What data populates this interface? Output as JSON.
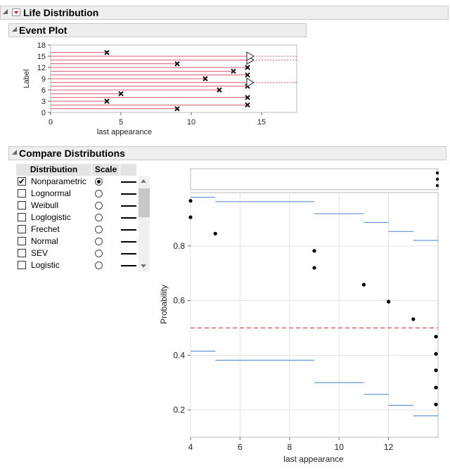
{
  "window": {
    "title": "Life Distribution"
  },
  "event_plot": {
    "title": "Event Plot",
    "chart_data": {
      "type": "scatter",
      "title": "Event Plot",
      "xlabel": "last appearance",
      "ylabel": "Label",
      "xlim": [
        0,
        17.5
      ],
      "ylim": [
        0,
        18
      ],
      "x_ticks": [
        "0",
        "5",
        "10",
        "15"
      ],
      "y_ticks": [
        "0",
        "3",
        "6",
        "9",
        "12",
        "15",
        "18"
      ],
      "events": [
        {
          "label": 1,
          "time": 9,
          "type": "failure"
        },
        {
          "label": 2,
          "time": 14,
          "type": "failure"
        },
        {
          "label": 3,
          "time": 4,
          "type": "failure"
        },
        {
          "label": 4,
          "time": 14,
          "type": "failure"
        },
        {
          "label": 5,
          "time": 5,
          "type": "failure"
        },
        {
          "label": 6,
          "time": 12,
          "type": "failure"
        },
        {
          "label": 7,
          "time": 14,
          "type": "failure"
        },
        {
          "label": 8,
          "time": 14,
          "type": "censored"
        },
        {
          "label": 9,
          "time": 11,
          "type": "failure"
        },
        {
          "label": 10,
          "time": 14,
          "type": "failure"
        },
        {
          "label": 11,
          "time": 13,
          "type": "failure"
        },
        {
          "label": 12,
          "time": 14,
          "type": "failure"
        },
        {
          "label": 13,
          "time": 9,
          "type": "failure"
        },
        {
          "label": 14,
          "time": 14,
          "type": "censored"
        },
        {
          "label": 15,
          "time": 14,
          "type": "censored"
        },
        {
          "label": 16,
          "time": 4,
          "type": "failure"
        }
      ]
    }
  },
  "compare": {
    "title": "Compare Distributions",
    "columns": [
      "Distribution",
      "Scale"
    ],
    "distributions": [
      {
        "name": "Nonparametric",
        "checked": true,
        "selected": true
      },
      {
        "name": "Lognormal",
        "checked": false,
        "selected": false
      },
      {
        "name": "Weibull",
        "checked": false,
        "selected": false
      },
      {
        "name": "Loglogistic",
        "checked": false,
        "selected": false
      },
      {
        "name": "Frechet",
        "checked": false,
        "selected": false
      },
      {
        "name": "Normal",
        "checked": false,
        "selected": false
      },
      {
        "name": "SEV",
        "checked": false,
        "selected": false
      },
      {
        "name": "Logistic",
        "checked": false,
        "selected": false
      }
    ],
    "chart_data": {
      "type": "scatter",
      "xlabel": "last appearance",
      "ylabel": "Probability",
      "xlim": [
        4,
        14
      ],
      "ylim": [
        0.1,
        0.995
      ],
      "x_ticks": [
        "4",
        "6",
        "8",
        "10",
        "12"
      ],
      "y_ticks": [
        "0.2",
        "0.4",
        "0.6",
        "0.8"
      ],
      "reference_line": 0.5,
      "points": [
        {
          "x": 4,
          "y": 0.965
        },
        {
          "x": 4,
          "y": 0.905
        },
        {
          "x": 5,
          "y": 0.845
        },
        {
          "x": 9,
          "y": 0.782
        },
        {
          "x": 9,
          "y": 0.72
        },
        {
          "x": 11,
          "y": 0.658
        },
        {
          "x": 12,
          "y": 0.596
        },
        {
          "x": 13,
          "y": 0.532
        },
        {
          "x": 14,
          "y": 0.468
        },
        {
          "x": 14,
          "y": 0.405
        },
        {
          "x": 14,
          "y": 0.345
        },
        {
          "x": 14,
          "y": 0.282
        },
        {
          "x": 14,
          "y": 0.22
        }
      ],
      "upper_band": [
        {
          "x0": 4,
          "x1": 5,
          "y": 0.978
        },
        {
          "x0": 5,
          "x1": 9,
          "y": 0.962
        },
        {
          "x0": 9,
          "x1": 11,
          "y": 0.918
        },
        {
          "x0": 11,
          "x1": 12,
          "y": 0.886
        },
        {
          "x0": 12,
          "x1": 13,
          "y": 0.853
        },
        {
          "x0": 13,
          "x1": 14,
          "y": 0.82
        }
      ],
      "lower_band": [
        {
          "x0": 4,
          "x1": 5,
          "y": 0.415
        },
        {
          "x0": 5,
          "x1": 9,
          "y": 0.382
        },
        {
          "x0": 9,
          "x1": 11,
          "y": 0.3
        },
        {
          "x0": 11,
          "x1": 12,
          "y": 0.257
        },
        {
          "x0": 12,
          "x1": 13,
          "y": 0.217
        },
        {
          "x0": 13,
          "x1": 14,
          "y": 0.178
        }
      ],
      "top_panel_points": [
        {
          "x": 14,
          "y": 0.2
        },
        {
          "x": 14,
          "y": 0.5
        },
        {
          "x": 14,
          "y": 0.8
        }
      ]
    }
  },
  "colors": {
    "header_bg": "#eeeeee",
    "event_line": "#e05a6a",
    "band": "#4a7fd0",
    "reference": "#d03030",
    "grid": "#e3e3e3"
  }
}
